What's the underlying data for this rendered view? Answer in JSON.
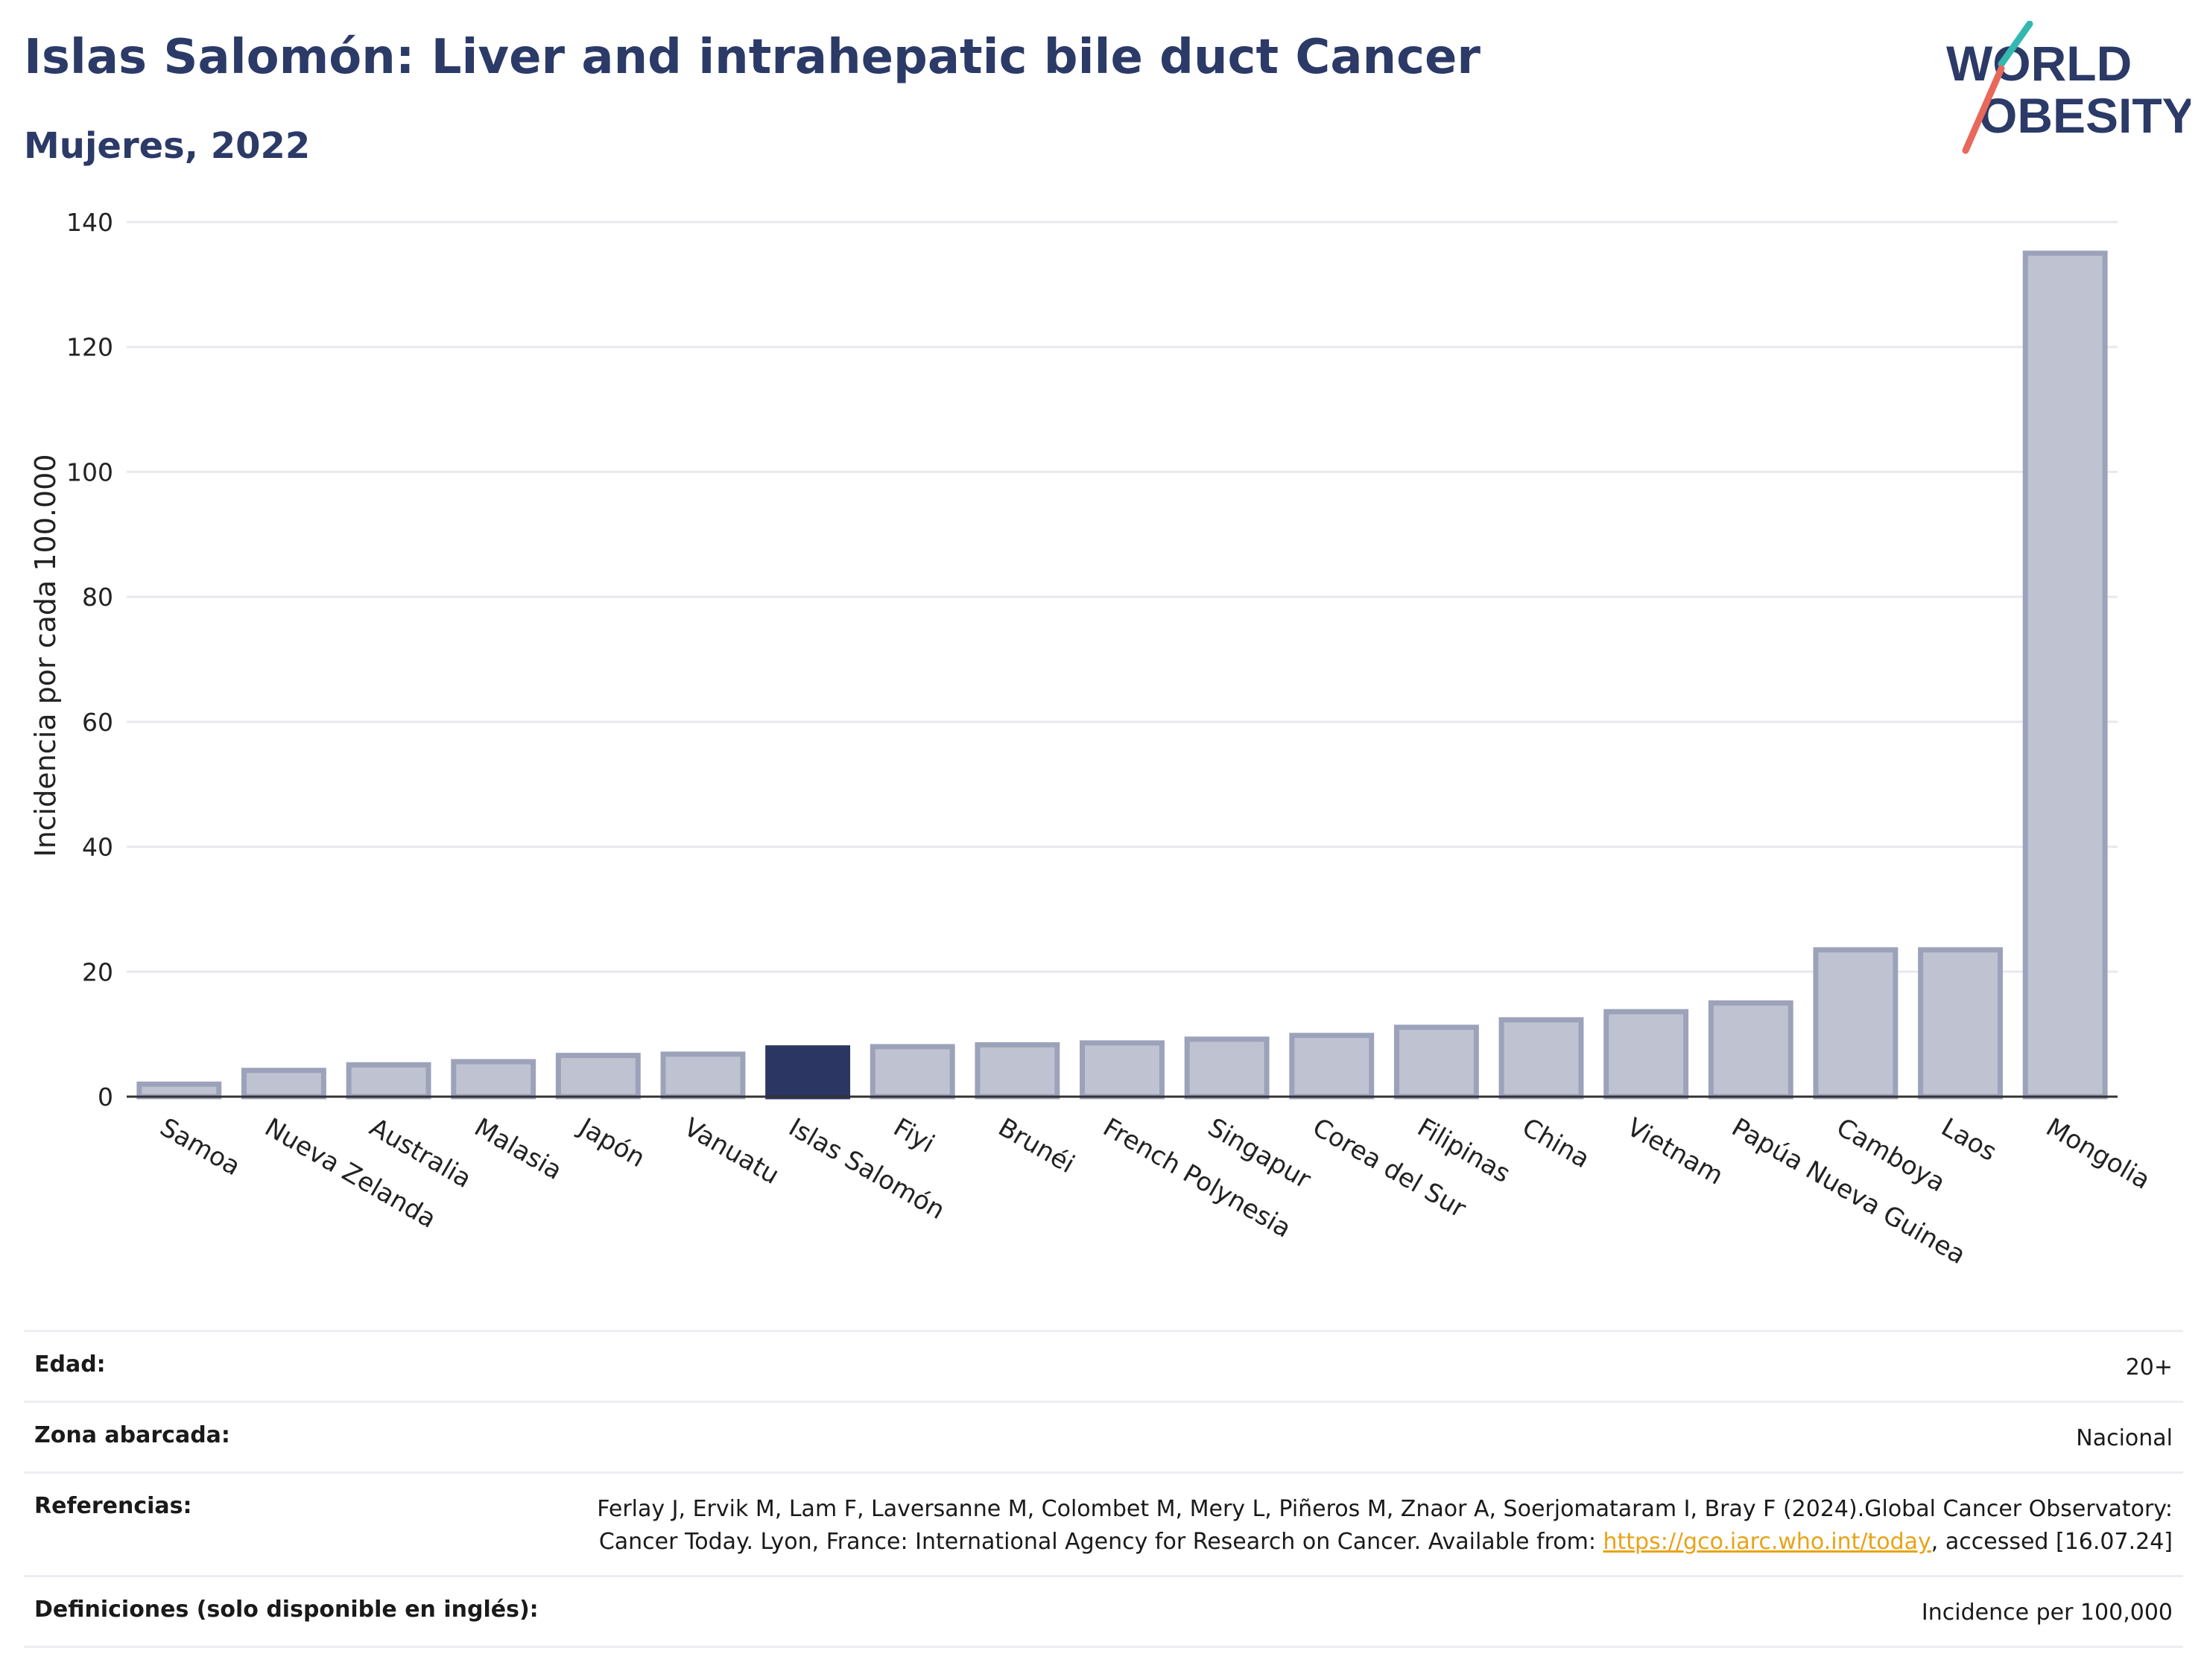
{
  "header": {
    "title": "Islas Salomón: Liver and intrahepatic bile duct Cancer",
    "subtitle": "Mujeres, 2022"
  },
  "logo": {
    "line1": "WORLD",
    "line2": "OBESITY"
  },
  "chart_data": {
    "type": "bar",
    "title": "Islas Salomón: Liver and intrahepatic bile duct Cancer",
    "subtitle": "Mujeres, 2022",
    "xlabel": "",
    "ylabel": "Incidencia por cada 100.000",
    "ylim": [
      0,
      140
    ],
    "yticks": [
      0,
      20,
      40,
      60,
      80,
      100,
      120,
      140
    ],
    "grid": true,
    "categories": [
      "Samoa",
      "Nueva Zelanda",
      "Australia",
      "Malasia",
      "Japón",
      "Vanuatu",
      "Islas Salomón",
      "Fiyi",
      "Brunéi",
      "French Polynesia",
      "Singapur",
      "Corea del Sur",
      "Filipinas",
      "China",
      "Vietnam",
      "Papúa Nueva Guinea",
      "Camboya",
      "Laos",
      "Mongolia"
    ],
    "values": [
      2.0,
      4.2,
      5.1,
      5.6,
      6.6,
      6.8,
      7.8,
      8.0,
      8.3,
      8.6,
      9.2,
      9.8,
      11.1,
      12.3,
      13.6,
      15.0,
      23.5,
      23.5,
      135.0
    ],
    "highlight": "Islas Salomón",
    "colors": {
      "bar": "#bfc3d1",
      "bar_border": "#9ca2ba",
      "highlight": "#2b3663",
      "grid": "#e8e8ee",
      "axis": "#333333"
    }
  },
  "meta": [
    {
      "key": "Edad:",
      "value": "20+"
    },
    {
      "key": "Zona abarcada:",
      "value": "Nacional"
    },
    {
      "key": "Referencias:",
      "value_pre": "Ferlay J, Ervik M, Lam F, Laversanne M, Colombet M, Mery L, Piñeros M, Znaor A, Soerjomataram I, Bray F (2024).Global Cancer Observatory: Cancer Today. Lyon, France: International Agency for Research on Cancer. Available from: ",
      "link": "https://gco.iarc.who.int/today",
      "value_post": ", accessed [16.07.24]"
    },
    {
      "key": "Definiciones (solo disponible en inglés):",
      "value": "Incidence per 100,000"
    }
  ]
}
